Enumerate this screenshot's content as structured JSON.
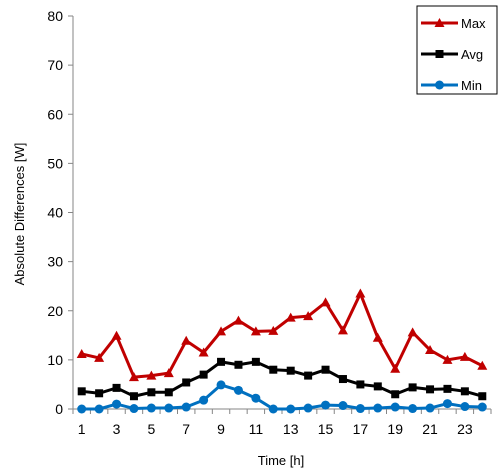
{
  "chart_data": {
    "type": "line",
    "title": "",
    "xlabel": "Time [h]",
    "ylabel": "Absolute Differences [W]",
    "x": [
      1,
      2,
      3,
      4,
      5,
      6,
      7,
      8,
      9,
      10,
      11,
      12,
      13,
      14,
      15,
      16,
      17,
      18,
      19,
      20,
      21,
      22,
      23,
      24
    ],
    "xticks": [
      1,
      3,
      5,
      7,
      9,
      11,
      13,
      15,
      17,
      19,
      21,
      23
    ],
    "xlim": [
      0.5,
      24.5
    ],
    "ylim": [
      0,
      80
    ],
    "yticks": [
      0,
      10,
      20,
      30,
      40,
      50,
      60,
      70,
      80
    ],
    "grid": false,
    "legend": "top-right",
    "series": [
      {
        "name": "Max",
        "color": "#C00000",
        "marker": "triangle",
        "values": [
          11.2,
          10.4,
          14.9,
          6.5,
          6.8,
          7.3,
          13.9,
          11.5,
          15.8,
          18.0,
          15.8,
          15.9,
          18.6,
          18.9,
          21.7,
          16.0,
          23.5,
          14.5,
          8.2,
          15.6,
          12.0,
          10.0,
          10.6,
          8.8
        ]
      },
      {
        "name": "Avg",
        "color": "#000000",
        "marker": "square",
        "values": [
          3.6,
          3.2,
          4.3,
          2.6,
          3.4,
          3.4,
          5.4,
          7.0,
          9.6,
          9.0,
          9.6,
          8.0,
          7.8,
          6.8,
          8.0,
          6.1,
          5.0,
          4.6,
          3.0,
          4.4,
          4.0,
          4.1,
          3.6,
          2.6
        ]
      },
      {
        "name": "Min",
        "color": "#0070C0",
        "marker": "circle",
        "values": [
          0.0,
          0.0,
          1.0,
          0.1,
          0.2,
          0.2,
          0.4,
          1.8,
          4.9,
          3.8,
          2.2,
          0.0,
          0.0,
          0.2,
          0.8,
          0.7,
          0.1,
          0.2,
          0.4,
          0.1,
          0.2,
          1.1,
          0.5,
          0.4
        ]
      }
    ]
  }
}
